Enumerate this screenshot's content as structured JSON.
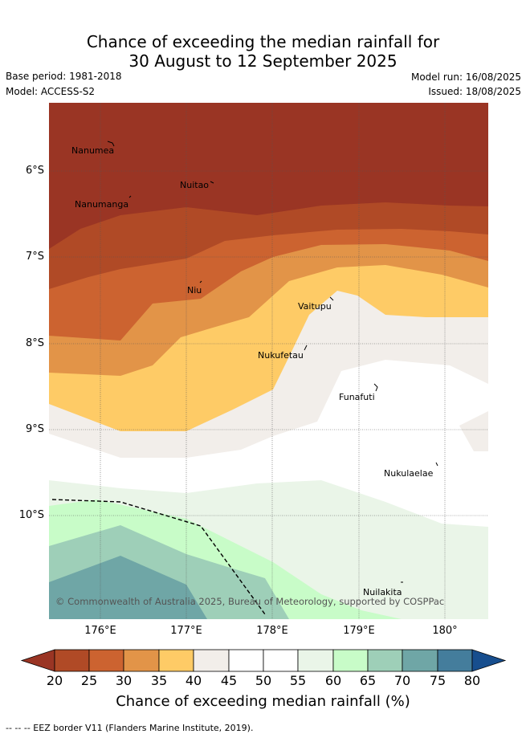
{
  "title_line1": "Chance of exceeding the median rainfall for",
  "title_line2": "30 August to 12 September 2025",
  "base_period": "Base period: 1981-2018",
  "model": "Model: ACCESS-S2",
  "model_run": "Model run: 16/08/2025",
  "issued": "Issued: 18/08/2025",
  "copyright": "© Commonwealth of Australia 2025, Bureau of Meteorology, supported by COSPPac",
  "lat_labels": [
    "6°S",
    "7°S",
    "8°S",
    "9°S",
    "10°S"
  ],
  "lon_labels": [
    "176°E",
    "177°E",
    "178°E",
    "179°E",
    "180°"
  ],
  "places": [
    "Nanumea",
    "Nuitao",
    "Nanumanga",
    "Niu",
    "Vaitupu",
    "Nukufetau",
    "Funafuti",
    "Nukulaelae",
    "Nuilakita"
  ],
  "colorbar": {
    "ticks": [
      "20",
      "25",
      "30",
      "35",
      "40",
      "45",
      "50",
      "55",
      "60",
      "65",
      "70",
      "75",
      "80"
    ],
    "label": "Chance of exceeding median rainfall (%)",
    "colors": [
      "#9a3524",
      "#b04a26",
      "#cc6330",
      "#e29448",
      "#fecb66",
      "#f2eeea",
      "#ffffff",
      "#ffffff",
      "#eaf5e8",
      "#c8fcc8",
      "#9ecfb8",
      "#6fa6a6",
      "#447d9c",
      "#174e8e"
    ]
  },
  "footer": "-- -- -- EEZ border V11 (Flanders Marine Institute, 2019)."
}
